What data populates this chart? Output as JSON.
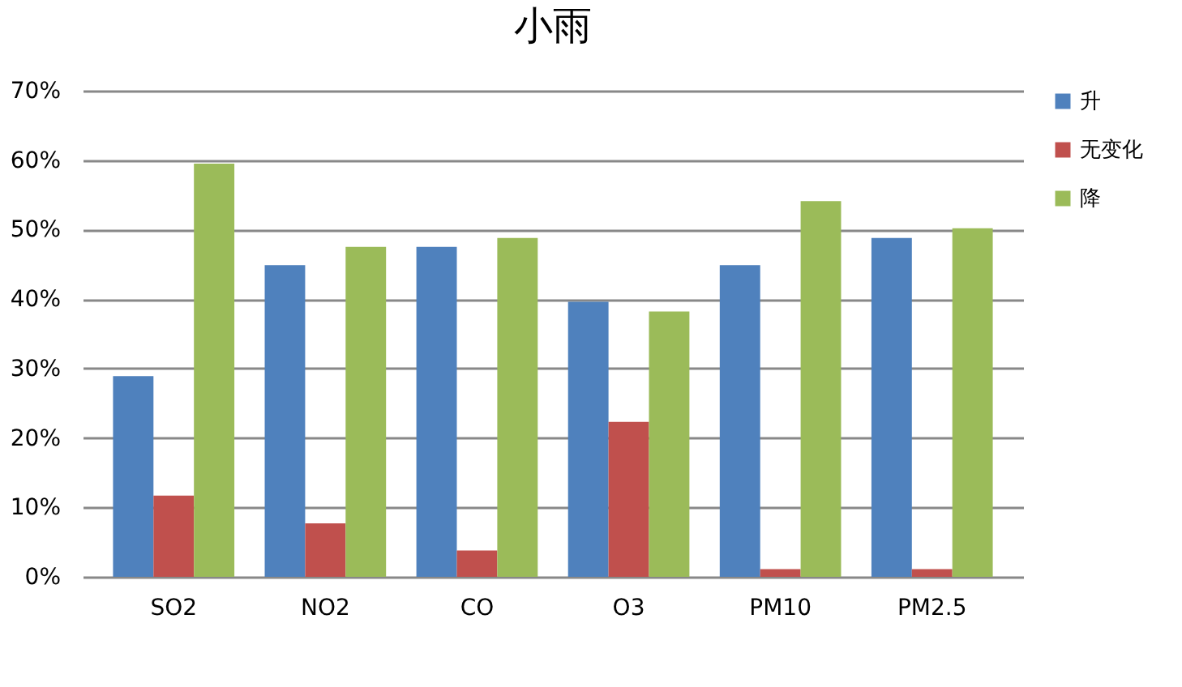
{
  "chart_data": {
    "type": "bar",
    "title": "小雨",
    "categories": [
      "SO2",
      "NO2",
      "CO",
      "O3",
      "PM10",
      "PM2.5"
    ],
    "series": [
      {
        "name": "升",
        "color": "#4f81bd",
        "values": [
          28.9,
          44.9,
          47.5,
          39.6,
          44.9,
          48.8
        ]
      },
      {
        "name": "无变化",
        "color": "#c0504d",
        "values": [
          11.7,
          7.7,
          3.8,
          22.3,
          1.1,
          1.1
        ]
      },
      {
        "name": "降",
        "color": "#9bbb59",
        "values": [
          59.5,
          47.5,
          48.8,
          38.2,
          54.1,
          50.2
        ]
      }
    ],
    "ylim": [
      0,
      70
    ],
    "yticks": [
      {
        "value": 0,
        "label": "0%"
      },
      {
        "value": 10,
        "label": "10%"
      },
      {
        "value": 20,
        "label": "20%"
      },
      {
        "value": 30,
        "label": "30%"
      },
      {
        "value": 40,
        "label": "40%"
      },
      {
        "value": 50,
        "label": "50%"
      },
      {
        "value": 60,
        "label": "60%"
      },
      {
        "value": 70,
        "label": "70%"
      }
    ],
    "grid": "y",
    "legend": "right"
  }
}
